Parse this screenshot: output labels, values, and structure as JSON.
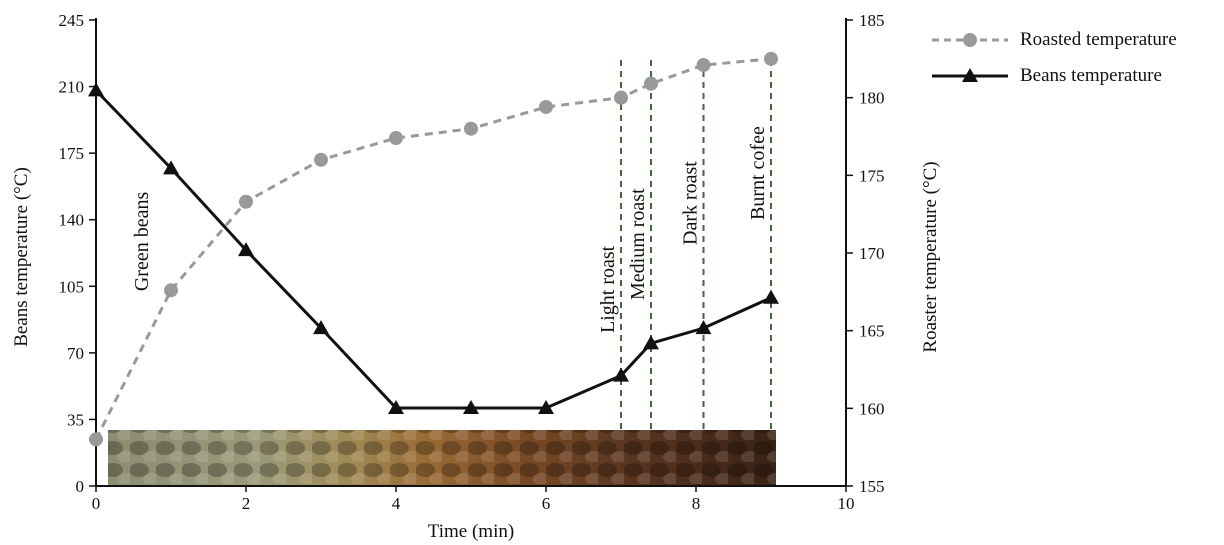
{
  "chart_data": {
    "type": "line",
    "xlabel": "Time (min)",
    "ylabel": "Beans temperature (°C)",
    "y2label": "Roaster temperature (°C)",
    "xlim": [
      0,
      10
    ],
    "ylim": [
      0,
      245
    ],
    "y2lim": [
      155,
      185
    ],
    "x_ticks": [
      0,
      2,
      4,
      6,
      8,
      10
    ],
    "y_ticks": [
      0,
      35,
      70,
      105,
      140,
      175,
      210,
      245
    ],
    "y2_ticks": [
      155,
      160,
      165,
      170,
      175,
      180,
      185
    ],
    "grid": false,
    "legend_position": "top-right",
    "series": [
      {
        "name": "Roasted temperature",
        "axis": "right",
        "style": "dashed",
        "marker": "circle",
        "color": "#999999",
        "x": [
          0,
          1,
          2,
          3,
          4,
          5,
          6,
          7,
          7.4,
          8.1,
          9
        ],
        "y": [
          158,
          167.6,
          173.3,
          176,
          177.4,
          178,
          179.4,
          180,
          180.9,
          182.1,
          182.5
        ]
      },
      {
        "name": "Beans temperature",
        "axis": "left",
        "style": "solid",
        "marker": "triangle",
        "color": "#111111",
        "x": [
          0,
          1,
          2,
          3,
          4,
          5,
          6,
          7,
          7.4,
          8.1,
          9
        ],
        "y": [
          208,
          167,
          124,
          83,
          41,
          41,
          41,
          58,
          75,
          83,
          99
        ]
      }
    ],
    "annotations": [
      {
        "text": "Green beans",
        "x": 0.6,
        "y": 168
      },
      {
        "text": "Light roast",
        "x": 7,
        "y": 300
      },
      {
        "text": "Medium roast",
        "x": 7.4,
        "y": 300
      },
      {
        "text": "Dark roast",
        "x": 8.1,
        "y": 300
      },
      {
        "text": "Burnt cofee",
        "x": 9,
        "y": 300
      }
    ],
    "reference_lines": [
      {
        "x": 7,
        "label": "Light roast"
      },
      {
        "x": 7.4,
        "label": "Medium roast"
      },
      {
        "x": 8.1,
        "label": "Dark roast"
      },
      {
        "x": 9,
        "label": "Burnt cofee"
      }
    ]
  },
  "legend": {
    "roasted_label": "Roasted temperature",
    "beans_label": "Beans temperature"
  }
}
